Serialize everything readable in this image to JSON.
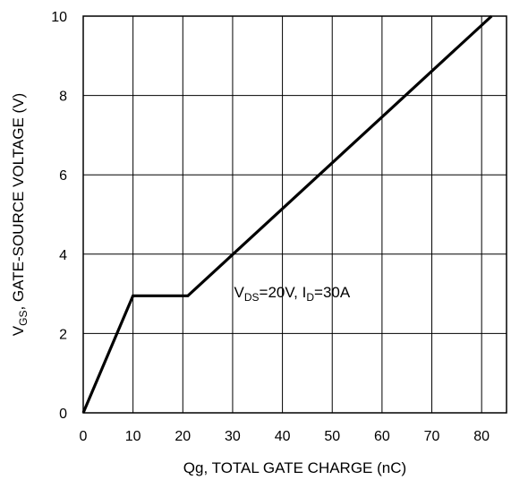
{
  "chart_data": {
    "type": "line",
    "xlabel": "Qg, TOTAL GATE CHARGE (nC)",
    "ylabel": {
      "prefix": "V",
      "sub": "GS",
      "rest": ", GATE-SOURCE VOLTAGE (V)"
    },
    "xlim": [
      0,
      85
    ],
    "ylim": [
      0,
      10
    ],
    "xticks": [
      0,
      10,
      20,
      30,
      40,
      50,
      60,
      70,
      80
    ],
    "yticks": [
      0,
      2,
      4,
      6,
      8,
      10
    ],
    "grid": true,
    "series": [
      {
        "x": [
          0,
          10,
          21,
          82
        ],
        "y": [
          0,
          2.95,
          2.95,
          10
        ],
        "color": "#000000"
      }
    ],
    "annotation": {
      "v": "V",
      "v_sub": "DS",
      "v_val": "=20V, I",
      "i_sub": "D",
      "i_val": "=30A",
      "x": 47,
      "y": 3.05
    }
  }
}
